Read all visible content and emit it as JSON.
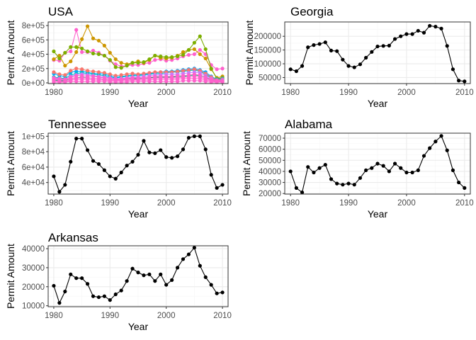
{
  "chart_data": [
    {
      "type": "line",
      "title": "USA",
      "xlabel": "Year",
      "ylabel": "Permit Amount",
      "x_ticks": [
        "1980",
        "1990",
        "2000",
        "2010"
      ],
      "y_ticks": [
        "0e+00",
        "2e+05",
        "4e+05",
        "6e+05",
        "8e+05"
      ],
      "xlim": [
        1979,
        2011
      ],
      "ylim": [
        -10000,
        850000
      ],
      "grid": true,
      "x": [
        1980,
        1981,
        1982,
        1983,
        1984,
        1985,
        1986,
        1987,
        1988,
        1989,
        1990,
        1991,
        1992,
        1993,
        1994,
        1995,
        1996,
        1997,
        1998,
        1999,
        2000,
        2001,
        2002,
        2003,
        2004,
        2005,
        2006,
        2007,
        2008,
        2009,
        2010
      ],
      "series": [
        {
          "color": "#FF61CC",
          "values": [
            320000,
            310000,
            420000,
            440000,
            740000,
            430000,
            430000,
            450000,
            420000,
            380000,
            310000,
            260000,
            230000,
            240000,
            250000,
            250000,
            270000,
            280000,
            320000,
            330000,
            310000,
            320000,
            340000,
            370000,
            390000,
            400000,
            460000,
            400000,
            250000,
            190000,
            200000
          ]
        },
        {
          "color": "#CD9600",
          "values": [
            330000,
            380000,
            240000,
            300000,
            430000,
            610000,
            790000,
            620000,
            590000,
            520000,
            420000,
            330000,
            280000,
            260000,
            280000,
            300000,
            280000,
            320000,
            380000,
            350000,
            340000,
            350000,
            380000,
            430000,
            460000,
            470000,
            400000,
            340000,
            190000,
            70000,
            90000
          ]
        },
        {
          "color": "#7CAE00",
          "values": [
            440000,
            340000,
            420000,
            500000,
            500000,
            480000,
            440000,
            410000,
            400000,
            380000,
            320000,
            220000,
            210000,
            240000,
            280000,
            280000,
            290000,
            330000,
            380000,
            370000,
            360000,
            360000,
            370000,
            390000,
            460000,
            560000,
            650000,
            470000,
            200000,
            60000,
            70000
          ]
        },
        {
          "color": "#00A9FF",
          "values": [
            130000,
            100000,
            90000,
            150000,
            160000,
            160000,
            150000,
            130000,
            130000,
            120000,
            100000,
            80000,
            90000,
            100000,
            110000,
            110000,
            120000,
            130000,
            140000,
            150000,
            160000,
            160000,
            170000,
            180000,
            190000,
            200000,
            180000,
            150000,
            90000,
            50000,
            60000
          ]
        },
        {
          "color": "#00BFC4",
          "values": [
            80000,
            70000,
            60000,
            110000,
            130000,
            140000,
            130000,
            120000,
            110000,
            100000,
            80000,
            70000,
            80000,
            90000,
            100000,
            100000,
            110000,
            120000,
            130000,
            130000,
            140000,
            150000,
            150000,
            160000,
            170000,
            180000,
            160000,
            120000,
            70000,
            40000,
            50000
          ]
        },
        {
          "color": "#F8766D",
          "values": [
            150000,
            120000,
            110000,
            170000,
            200000,
            190000,
            170000,
            160000,
            150000,
            140000,
            120000,
            100000,
            110000,
            120000,
            130000,
            120000,
            130000,
            140000,
            150000,
            150000,
            150000,
            150000,
            160000,
            170000,
            180000,
            190000,
            170000,
            130000,
            80000,
            40000,
            50000
          ]
        },
        {
          "color": "#C77CFF",
          "values": [
            60000,
            50000,
            40000,
            90000,
            110000,
            120000,
            110000,
            100000,
            90000,
            80000,
            70000,
            60000,
            60000,
            70000,
            80000,
            80000,
            90000,
            100000,
            110000,
            110000,
            120000,
            120000,
            120000,
            130000,
            140000,
            150000,
            140000,
            100000,
            60000,
            30000,
            40000
          ]
        },
        {
          "color": "#00BE67",
          "values": [
            40000,
            30000,
            30000,
            60000,
            70000,
            80000,
            70000,
            60000,
            60000,
            50000,
            40000,
            40000,
            40000,
            50000,
            60000,
            60000,
            60000,
            70000,
            80000,
            80000,
            80000,
            80000,
            90000,
            90000,
            100000,
            110000,
            100000,
            80000,
            40000,
            20000,
            30000
          ]
        },
        {
          "color": "#FF61CC",
          "values": [
            70000,
            60000,
            50000,
            80000,
            100000,
            100000,
            90000,
            90000,
            80000,
            70000,
            60000,
            50000,
            50000,
            60000,
            70000,
            70000,
            70000,
            80000,
            90000,
            90000,
            90000,
            90000,
            100000,
            100000,
            110000,
            120000,
            110000,
            80000,
            50000,
            30000,
            30000
          ]
        },
        {
          "color": "#FF61CC",
          "values": [
            50000,
            40000,
            40000,
            60000,
            70000,
            70000,
            70000,
            60000,
            60000,
            50000,
            40000,
            40000,
            40000,
            50000,
            50000,
            50000,
            60000,
            60000,
            70000,
            70000,
            70000,
            70000,
            70000,
            80000,
            80000,
            90000,
            80000,
            60000,
            40000,
            20000,
            20000
          ]
        },
        {
          "color": "#FF61CC",
          "values": [
            30000,
            20000,
            20000,
            40000,
            50000,
            50000,
            50000,
            40000,
            40000,
            40000,
            30000,
            30000,
            30000,
            30000,
            40000,
            40000,
            40000,
            40000,
            50000,
            50000,
            50000,
            50000,
            50000,
            60000,
            60000,
            60000,
            60000,
            40000,
            30000,
            10000,
            20000
          ]
        },
        {
          "color": "#FF61CC",
          "values": [
            10000,
            10000,
            10000,
            20000,
            20000,
            20000,
            20000,
            20000,
            20000,
            20000,
            10000,
            10000,
            10000,
            10000,
            20000,
            20000,
            20000,
            20000,
            20000,
            20000,
            20000,
            20000,
            20000,
            30000,
            30000,
            30000,
            30000,
            20000,
            10000,
            10000,
            10000
          ]
        }
      ]
    },
    {
      "type": "line",
      "title": "Georgia",
      "xlabel": "Year",
      "ylabel": "Permit Amount",
      "x_ticks": [
        "1980",
        "1990",
        "2000",
        "2010"
      ],
      "y_ticks": [
        "50000",
        "100000",
        "150000",
        "200000"
      ],
      "xlim": [
        1979,
        2011
      ],
      "ylim": [
        28000,
        252000
      ],
      "grid": true,
      "x": [
        1980,
        1981,
        1982,
        1983,
        1984,
        1985,
        1986,
        1987,
        1988,
        1989,
        1990,
        1991,
        1992,
        1993,
        1994,
        1995,
        1996,
        1997,
        1998,
        1999,
        2000,
        2001,
        2002,
        2003,
        2004,
        2005,
        2006,
        2007,
        2008,
        2009,
        2010
      ],
      "series": [
        {
          "color": "#000000",
          "values": [
            80000,
            73000,
            92000,
            160000,
            168000,
            172000,
            178000,
            148000,
            146000,
            115000,
            92000,
            87000,
            98000,
            122000,
            143000,
            163000,
            165000,
            166000,
            190000,
            200000,
            208000,
            208000,
            220000,
            213000,
            238000,
            235000,
            228000,
            165000,
            80000,
            39000,
            36000
          ]
        }
      ]
    },
    {
      "type": "line",
      "title": "Tennessee",
      "xlabel": "Year",
      "ylabel": "Permit Amount",
      "x_ticks": [
        "1980",
        "1990",
        "2000",
        "2010"
      ],
      "y_ticks": [
        "4e+04",
        "6e+04",
        "8e+04",
        "1e+05"
      ],
      "xlim": [
        1979,
        2011
      ],
      "ylim": [
        25000,
        104000
      ],
      "grid": true,
      "x": [
        1980,
        1981,
        1982,
        1983,
        1984,
        1985,
        1986,
        1987,
        1988,
        1989,
        1990,
        1991,
        1992,
        1993,
        1994,
        1995,
        1996,
        1997,
        1998,
        1999,
        2000,
        2001,
        2002,
        2003,
        2004,
        2005,
        2006,
        2007,
        2008,
        2009,
        2010
      ],
      "series": [
        {
          "color": "#000000",
          "values": [
            48000,
            28000,
            37000,
            67000,
            97000,
            97000,
            82000,
            68000,
            64000,
            56000,
            48000,
            45000,
            53000,
            62000,
            67000,
            76000,
            94000,
            79000,
            78000,
            82000,
            73000,
            72000,
            74000,
            83000,
            98000,
            100000,
            100000,
            83000,
            50000,
            33000,
            37000
          ]
        }
      ]
    },
    {
      "type": "line",
      "title": "Alabama",
      "xlabel": "Year",
      "ylabel": "Permit Amount",
      "x_ticks": [
        "1980",
        "1990",
        "2000",
        "2010"
      ],
      "y_ticks": [
        "20000",
        "30000",
        "40000",
        "50000",
        "60000",
        "70000"
      ],
      "xlim": [
        1979,
        2011
      ],
      "ylim": [
        19500,
        74500
      ],
      "grid": true,
      "x": [
        1980,
        1981,
        1982,
        1983,
        1984,
        1985,
        1986,
        1987,
        1988,
        1989,
        1990,
        1991,
        1992,
        1993,
        1994,
        1995,
        1996,
        1997,
        1998,
        1999,
        2000,
        2001,
        2002,
        2003,
        2004,
        2005,
        2006,
        2007,
        2008,
        2009,
        2010
      ],
      "series": [
        {
          "color": "#000000",
          "values": [
            40000,
            25000,
            21000,
            44000,
            39000,
            43000,
            46000,
            33000,
            29000,
            28000,
            29000,
            28000,
            34000,
            41000,
            43000,
            47000,
            45000,
            40000,
            47000,
            43000,
            39000,
            39000,
            41000,
            54000,
            61000,
            67000,
            72000,
            59000,
            41000,
            30000,
            25000
          ]
        }
      ]
    },
    {
      "type": "line",
      "title": "Arkansas",
      "xlabel": "Year",
      "ylabel": "Permit Amount",
      "x_ticks": [
        "1980",
        "1990",
        "2000",
        "2010"
      ],
      "y_ticks": [
        "10000",
        "20000",
        "30000",
        "40000"
      ],
      "xlim": [
        1979,
        2011
      ],
      "ylim": [
        9500,
        41500
      ],
      "grid": true,
      "x": [
        1980,
        1981,
        1982,
        1983,
        1984,
        1985,
        1986,
        1987,
        1988,
        1989,
        1990,
        1991,
        1992,
        1993,
        1994,
        1995,
        1996,
        1997,
        1998,
        1999,
        2000,
        2001,
        2002,
        2003,
        2004,
        2005,
        2006,
        2007,
        2008,
        2009,
        2010
      ],
      "series": [
        {
          "color": "#000000",
          "values": [
            20500,
            11500,
            17500,
            26500,
            24500,
            24500,
            21500,
            15000,
            14500,
            15000,
            13000,
            16000,
            18000,
            23000,
            29500,
            27500,
            26000,
            26500,
            23000,
            26500,
            21000,
            23500,
            30000,
            34500,
            37000,
            40500,
            31000,
            25000,
            21000,
            16500,
            17000
          ]
        }
      ]
    }
  ]
}
